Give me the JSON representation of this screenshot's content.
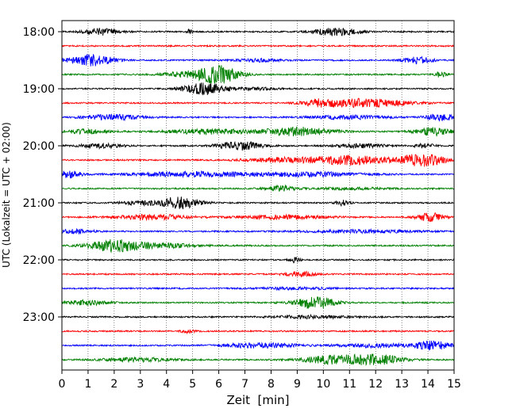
{
  "chart_data": {
    "type": "line",
    "xlabel": "Zeit  [min]",
    "ylabel": "UTC (Lokalzeit = UTC + 02:00)",
    "xlim": [
      0,
      15
    ],
    "x_ticks": [
      "0",
      "1",
      "2",
      "3",
      "4",
      "5",
      "6",
      "7",
      "8",
      "9",
      "10",
      "11",
      "12",
      "13",
      "14",
      "15"
    ],
    "y_ticks": [
      "18:00",
      "19:00",
      "20:00",
      "21:00",
      "22:00",
      "23:00"
    ],
    "grid": "vertical dotted at each minute",
    "trace_interval_min": 15,
    "traces": [
      {
        "start": "18:00",
        "color": "#000000",
        "events": [
          [
            1.5,
            0.5,
            0.45
          ],
          [
            10.5,
            0.6,
            0.55
          ],
          [
            4.9,
            0.1,
            0.3
          ]
        ]
      },
      {
        "start": "18:15",
        "color": "#ff0000",
        "events": []
      },
      {
        "start": "18:30",
        "color": "#0000ff",
        "events": [
          [
            1.1,
            0.6,
            0.8
          ],
          [
            13.6,
            0.4,
            0.45
          ],
          [
            7.5,
            0.6,
            0.2
          ]
        ]
      },
      {
        "start": "18:45",
        "color": "#008000",
        "events": [
          [
            6.0,
            0.55,
            1.2
          ],
          [
            4.8,
            0.7,
            0.35
          ],
          [
            14.5,
            0.15,
            0.4
          ]
        ]
      },
      {
        "start": "19:00",
        "color": "#000000",
        "events": [
          [
            5.5,
            0.6,
            0.8
          ],
          [
            7.5,
            0.5,
            0.15
          ]
        ]
      },
      {
        "start": "19:15",
        "color": "#ff0000",
        "events": [
          [
            11.6,
            1.1,
            0.6
          ],
          [
            9.8,
            0.4,
            0.4
          ]
        ]
      },
      {
        "start": "19:30",
        "color": "#0000ff",
        "events": [
          [
            2.0,
            0.8,
            0.35
          ],
          [
            14.5,
            0.4,
            0.45
          ],
          [
            11.0,
            1.0,
            0.25
          ]
        ]
      },
      {
        "start": "19:45",
        "color": "#008000",
        "events": [
          [
            9.0,
            1.0,
            0.6
          ],
          [
            5.5,
            1.0,
            0.35
          ],
          [
            14.2,
            0.5,
            0.55
          ],
          [
            1.0,
            0.6,
            0.3
          ]
        ]
      },
      {
        "start": "20:00",
        "color": "#000000",
        "events": [
          [
            6.8,
            0.6,
            0.6
          ],
          [
            1.5,
            0.6,
            0.3
          ],
          [
            11.5,
            0.7,
            0.25
          ],
          [
            13.9,
            0.25,
            0.3
          ]
        ]
      },
      {
        "start": "20:15",
        "color": "#ff0000",
        "events": [
          [
            11.0,
            1.1,
            0.6
          ],
          [
            13.8,
            0.6,
            0.85
          ],
          [
            8.5,
            1.0,
            0.3
          ]
        ]
      },
      {
        "start": "20:30",
        "color": "#0000ff",
        "events": [
          [
            0.3,
            0.3,
            0.55
          ],
          [
            5.0,
            1.5,
            0.35
          ],
          [
            9.5,
            1.5,
            0.3
          ]
        ]
      },
      {
        "start": "20:45",
        "color": "#008000",
        "events": [
          [
            8.4,
            0.4,
            0.35
          ],
          [
            11.0,
            1.0,
            0.15
          ]
        ]
      },
      {
        "start": "21:00",
        "color": "#000000",
        "events": [
          [
            4.5,
            0.55,
            0.85
          ],
          [
            10.7,
            0.2,
            0.35
          ],
          [
            3.0,
            0.5,
            0.25
          ]
        ]
      },
      {
        "start": "21:15",
        "color": "#ff0000",
        "events": [
          [
            14.1,
            0.35,
            0.6
          ],
          [
            3.5,
            1.0,
            0.35
          ],
          [
            8.5,
            1.2,
            0.25
          ]
        ]
      },
      {
        "start": "21:30",
        "color": "#0000ff",
        "events": [
          [
            11.5,
            1.5,
            0.2
          ],
          [
            0.5,
            0.5,
            0.25
          ]
        ]
      },
      {
        "start": "21:45",
        "color": "#008000",
        "events": [
          [
            2.0,
            0.7,
            0.85
          ],
          [
            4.0,
            0.8,
            0.3
          ]
        ]
      },
      {
        "start": "22:00",
        "color": "#000000",
        "events": [
          [
            8.9,
            0.15,
            0.35
          ]
        ]
      },
      {
        "start": "22:15",
        "color": "#ff0000",
        "events": [
          [
            9.1,
            0.4,
            0.35
          ]
        ]
      },
      {
        "start": "22:30",
        "color": "#0000ff",
        "events": [
          [
            9.0,
            1.0,
            0.15
          ]
        ]
      },
      {
        "start": "22:45",
        "color": "#008000",
        "events": [
          [
            9.7,
            0.55,
            0.85
          ],
          [
            1.0,
            0.6,
            0.3
          ]
        ]
      },
      {
        "start": "23:00",
        "color": "#000000",
        "events": [
          [
            9.5,
            1.0,
            0.2
          ]
        ]
      },
      {
        "start": "23:15",
        "color": "#ff0000",
        "events": [
          [
            4.8,
            0.2,
            0.2
          ]
        ]
      },
      {
        "start": "23:30",
        "color": "#0000ff",
        "events": [
          [
            14.2,
            0.5,
            0.6
          ],
          [
            7.6,
            1.0,
            0.35
          ],
          [
            12.0,
            1.0,
            0.25
          ]
        ]
      },
      {
        "start": "23:45",
        "color": "#008000",
        "events": [
          [
            12.1,
            0.7,
            0.65
          ],
          [
            10.4,
            0.8,
            0.6
          ],
          [
            3.0,
            1.0,
            0.25
          ]
        ]
      }
    ]
  }
}
